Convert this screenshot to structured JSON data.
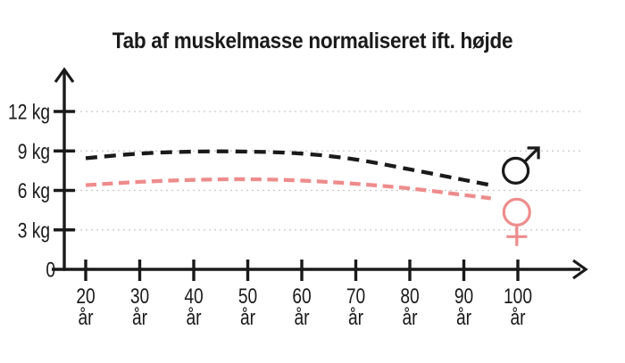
{
  "chart_data": {
    "type": "line",
    "title": "Tab af muskelmasse normaliseret ift. højde",
    "xlabel": "",
    "ylabel": "",
    "x_unit": "år",
    "y_unit": "kg",
    "xlim": [
      20,
      100
    ],
    "ylim": [
      0,
      13.5
    ],
    "grid": "horizontal-dashed-light-gray",
    "legend_position": "right-of-curve-ends",
    "x_ticks": [
      "20",
      "30",
      "40",
      "50",
      "60",
      "70",
      "80",
      "90",
      "100"
    ],
    "x_tick_suffix": "år",
    "y_ticks": [
      {
        "value": 12,
        "label": "12 kg"
      },
      {
        "value": 9,
        "label": "9 kg"
      },
      {
        "value": 6,
        "label": "6 kg"
      },
      {
        "value": 3,
        "label": "3 kg"
      }
    ],
    "origin_label": "0",
    "series": [
      {
        "name": "male",
        "symbol": "♂",
        "color": "#1a1a1a",
        "style": "dashed",
        "dash": "13 8",
        "symbol_at": [
          99.6,
          7.5
        ],
        "points": [
          [
            20,
            8.45
          ],
          [
            30,
            8.8
          ],
          [
            40,
            8.95
          ],
          [
            50,
            8.95
          ],
          [
            60,
            8.8
          ],
          [
            70,
            8.35
          ],
          [
            80,
            7.6
          ],
          [
            90,
            6.8
          ],
          [
            95,
            6.4
          ]
        ]
      },
      {
        "name": "female",
        "symbol": "♀",
        "color": "#ee8c8c",
        "style": "dashed",
        "dash": "12 6.5",
        "symbol_at": [
          99.8,
          4.35
        ],
        "points": [
          [
            20,
            6.4
          ],
          [
            30,
            6.65
          ],
          [
            40,
            6.8
          ],
          [
            50,
            6.85
          ],
          [
            60,
            6.75
          ],
          [
            70,
            6.5
          ],
          [
            80,
            6.15
          ],
          [
            90,
            5.65
          ],
          [
            95,
            5.4
          ]
        ]
      }
    ],
    "colors": {
      "ink": "#1a1a1a",
      "female_line": "#ee8c8c",
      "gridline": "#c9c9c9",
      "background": "#ffffff"
    }
  }
}
